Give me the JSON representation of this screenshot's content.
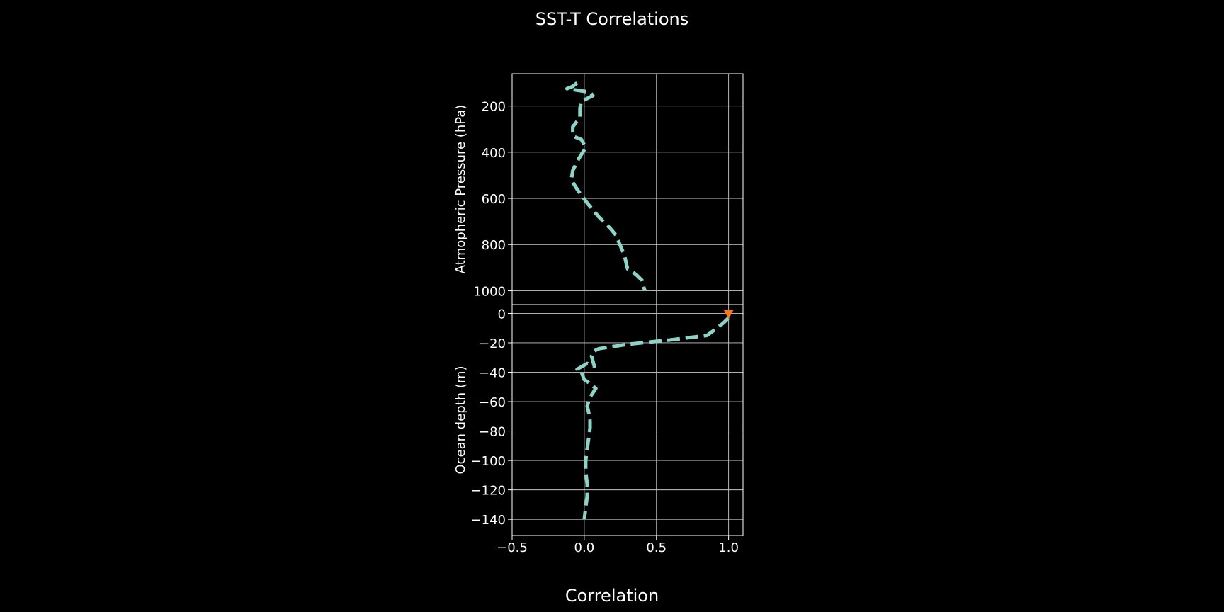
{
  "chart_data": {
    "type": "line",
    "title": "SST-T Correlations",
    "xlabel": "Correlation",
    "xlim": [
      -0.5,
      1.1
    ],
    "x_ticks": [
      -0.5,
      0.0,
      0.5,
      1.0
    ],
    "x_tick_labels": [
      "−0.5",
      "0.0",
      "0.5",
      "1.0"
    ],
    "grid": true,
    "background": "#000000",
    "panels": [
      {
        "name": "atmosphere",
        "ylabel": "Atmopheric Pressure (hPa)",
        "ylim": [
          1060,
          60
        ],
        "y_ticks": [
          200,
          400,
          600,
          800,
          1000
        ],
        "y_tick_labels": [
          "200",
          "400",
          "600",
          "800",
          "1000"
        ],
        "series": [
          {
            "style": "dashed",
            "color": "#8dd3c7",
            "x": [
              -0.05,
              -0.08,
              -0.12,
              0.04,
              0.06,
              -0.02,
              -0.03,
              -0.03,
              -0.08,
              -0.08,
              -0.02,
              0.01,
              -0.04,
              -0.08,
              -0.09,
              -0.05,
              0.02,
              0.1,
              0.18,
              0.22,
              0.24,
              0.26,
              0.28,
              0.29,
              0.3,
              0.36,
              0.4,
              0.41,
              0.42
            ],
            "y": [
              100,
              115,
              125,
              140,
              155,
              180,
              210,
              250,
              290,
              330,
              345,
              380,
              430,
              480,
              520,
              560,
              620,
              680,
              730,
              760,
              790,
              820,
              850,
              880,
              905,
              930,
              955,
              980,
              1000
            ]
          }
        ]
      },
      {
        "name": "ocean",
        "ylabel": "Ocean depth (m)",
        "ylim": [
          -151,
          6
        ],
        "y_ticks": [
          0,
          -20,
          -40,
          -60,
          -80,
          -100,
          -120,
          -140
        ],
        "y_tick_labels": [
          "0",
          "−20",
          "−40",
          "−60",
          "−80",
          "−100",
          "−120",
          "−140"
        ],
        "series": [
          {
            "style": "dashed",
            "color": "#8dd3c7",
            "x": [
              1.0,
              0.97,
              0.92,
              0.85,
              0.6,
              0.3,
              0.1,
              0.06,
              0.05,
              0.07,
              0.02,
              -0.05,
              -0.02,
              0.0,
              0.03,
              0.08,
              0.04,
              0.02,
              0.03,
              0.04,
              0.04,
              0.03,
              0.02,
              0.01,
              0.01,
              0.02,
              0.02,
              0.01,
              0.0
            ],
            "y": [
              -3,
              -6,
              -10,
              -15,
              -18,
              -21,
              -24,
              -26,
              -29,
              -36,
              -34,
              -38,
              -40,
              -45,
              -47,
              -51,
              -57,
              -63,
              -67,
              -73,
              -78,
              -85,
              -92,
              -100,
              -108,
              -116,
              -124,
              -132,
              -140
            ]
          },
          {
            "style": "marker",
            "marker": "triangle-down",
            "color": "#f5781e",
            "x": [
              1.0
            ],
            "y": [
              0
            ]
          }
        ]
      }
    ]
  }
}
